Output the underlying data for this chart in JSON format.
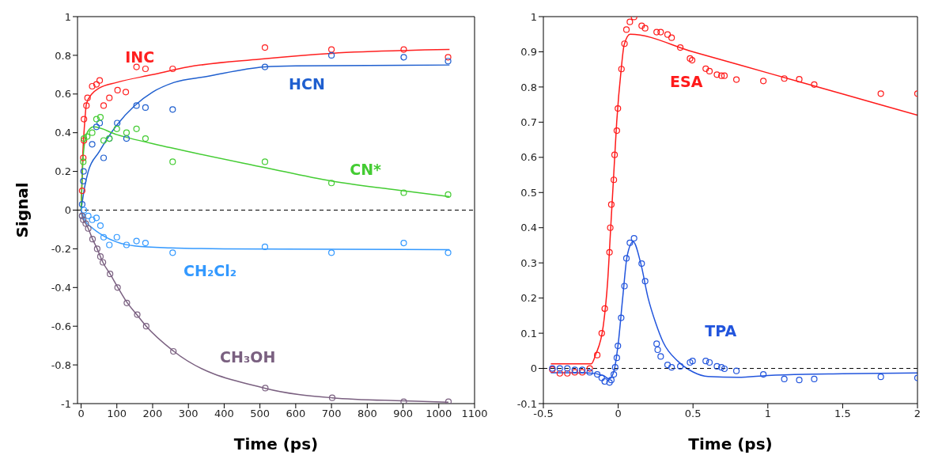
{
  "chart_data": [
    {
      "type": "line",
      "xlabel": "Time (ps)",
      "ylabel": "Signal",
      "xlim": [
        -10,
        1100
      ],
      "xticks": [
        0,
        100,
        200,
        300,
        400,
        500,
        600,
        700,
        800,
        900,
        1000,
        1100
      ],
      "ylim": [
        -1,
        1
      ],
      "yticks": [
        -1,
        -0.8,
        -0.6,
        -0.4,
        -0.2,
        0,
        0.2,
        0.4,
        0.6,
        0.8,
        1
      ],
      "ref_lines": [
        {
          "axis": "y",
          "value": 0,
          "color": "#000000",
          "line_style": "dashed"
        }
      ],
      "series": [
        {
          "marker": "none",
          "name": "INC",
          "color": "#ff2020",
          "x": [
            0,
            5,
            10,
            15,
            30,
            50,
            100,
            200,
            300,
            500,
            700,
            1030
          ],
          "values": [
            0,
            0.3,
            0.45,
            0.55,
            0.6,
            0.63,
            0.66,
            0.7,
            0.74,
            0.78,
            0.81,
            0.83
          ]
        },
        {
          "marker": "none",
          "name": "HCN",
          "color": "#1f5fcf",
          "x": [
            0,
            10,
            20,
            50,
            100,
            150,
            200,
            260,
            350,
            514,
            600,
            1030
          ],
          "values": [
            0,
            0.12,
            0.2,
            0.3,
            0.44,
            0.54,
            0.61,
            0.66,
            0.69,
            0.74,
            0.745,
            0.75
          ]
        },
        {
          "marker": "none",
          "name": "CN*",
          "color": "#44cc33",
          "x": [
            0,
            5,
            10,
            20,
            35,
            100,
            257,
            514,
            700,
            900,
            1030
          ],
          "values": [
            0,
            0.25,
            0.35,
            0.41,
            0.43,
            0.39,
            0.32,
            0.22,
            0.15,
            0.1,
            0.07
          ]
        },
        {
          "marker": "none",
          "name": "CH₂Cl₂",
          "color": "#3399ff",
          "x": [
            0,
            10,
            30,
            60,
            100,
            150,
            250,
            400,
            1030
          ],
          "values": [
            0,
            -0.05,
            -0.09,
            -0.13,
            -0.165,
            -0.185,
            -0.195,
            -0.2,
            -0.205
          ]
        },
        {
          "marker": "none",
          "name": "CH₃OH",
          "color": "#7a6080",
          "x": [
            0,
            3,
            6,
            13,
            20,
            32,
            45,
            54,
            61,
            81,
            102,
            128,
            157,
            182,
            258,
            515,
            702,
            902,
            1027
          ],
          "values": [
            0,
            -0.03,
            -0.05,
            -0.07,
            -0.095,
            -0.15,
            -0.2,
            -0.24,
            -0.27,
            -0.33,
            -0.397,
            -0.476,
            -0.543,
            -0.6,
            -0.728,
            -0.921,
            -0.97,
            -0.986,
            -0.993
          ]
        },
        {
          "type": "scatter",
          "marker": "circle",
          "color": "#ff2020",
          "x": [
            3,
            6,
            8,
            8,
            15,
            18,
            31,
            43,
            52,
            63,
            79,
            102,
            125,
            155,
            180,
            256,
            514,
            700,
            902,
            1026
          ],
          "values": [
            0.1,
            0.27,
            0.36,
            0.47,
            0.54,
            0.58,
            0.64,
            0.65,
            0.67,
            0.54,
            0.58,
            0.62,
            0.61,
            0.74,
            0.73,
            0.73,
            0.84,
            0.83,
            0.83,
            0.79
          ]
        },
        {
          "type": "scatter",
          "marker": "circle",
          "color": "#1f5fcf",
          "x": [
            3,
            6,
            7,
            31,
            43,
            52,
            63,
            79,
            101,
            127,
            155,
            180,
            256,
            514,
            700,
            902,
            1026
          ],
          "values": [
            0.03,
            0.15,
            0.2,
            0.34,
            0.43,
            0.45,
            0.27,
            0.37,
            0.45,
            0.37,
            0.54,
            0.53,
            0.52,
            0.74,
            0.8,
            0.79,
            0.77
          ]
        },
        {
          "type": "scatter",
          "marker": "circle",
          "color": "#44cc33",
          "x": [
            6,
            8,
            17,
            31,
            43,
            54,
            63,
            79,
            100,
            127,
            155,
            180,
            256,
            514,
            700,
            902,
            1026
          ],
          "values": [
            0.25,
            0.37,
            0.38,
            0.4,
            0.47,
            0.48,
            0.36,
            0.37,
            0.42,
            0.4,
            0.42,
            0.37,
            0.25,
            0.25,
            0.14,
            0.09,
            0.08
          ]
        },
        {
          "type": "scatter",
          "marker": "circle",
          "color": "#3399ff",
          "x": [
            3,
            8,
            20,
            31,
            43,
            54,
            63,
            79,
            100,
            127,
            155,
            180,
            256,
            514,
            700,
            902,
            1026
          ],
          "values": [
            -0.03,
            0,
            -0.03,
            -0.05,
            -0.04,
            -0.08,
            -0.14,
            -0.18,
            -0.14,
            -0.18,
            -0.16,
            -0.17,
            -0.22,
            -0.19,
            -0.22,
            -0.17,
            -0.22
          ]
        },
        {
          "type": "scatter",
          "marker": "circle",
          "color": "#7a6080",
          "x": [
            3,
            6,
            13,
            20,
            32,
            45,
            54,
            61,
            81,
            102,
            128,
            157,
            182,
            258,
            515,
            702,
            902,
            1027
          ],
          "values": [
            -0.03,
            -0.05,
            -0.07,
            -0.095,
            -0.15,
            -0.2,
            -0.24,
            -0.27,
            -0.33,
            -0.4,
            -0.48,
            -0.54,
            -0.6,
            -0.73,
            -0.92,
            -0.97,
            -0.99,
            -0.99
          ]
        }
      ]
    },
    {
      "type": "line",
      "xlabel": "Time (ps)",
      "xlim": [
        -0.5,
        2
      ],
      "xticks": [
        -0.5,
        0,
        0.5,
        1,
        1.5,
        2
      ],
      "ylim": [
        -0.1,
        1
      ],
      "yticks": [
        -0.1,
        0,
        0.1,
        0.2,
        0.3,
        0.4,
        0.5,
        0.6,
        0.7,
        0.8,
        0.9,
        1
      ],
      "ref_lines": [
        {
          "axis": "y",
          "value": 0,
          "color": "#000000",
          "line_style": "dashed"
        }
      ],
      "series": [
        {
          "marker": "none",
          "name": "ESA",
          "color": "#ff1a1a",
          "x": [
            -0.45,
            -0.18,
            -0.15,
            -0.1,
            -0.07,
            -0.05,
            -0.03,
            -0.01,
            0.02,
            0.04,
            0.08,
            0.5,
            1,
            1.5,
            2
          ],
          "values": [
            0.013,
            0.013,
            0.04,
            0.12,
            0.25,
            0.4,
            0.55,
            0.7,
            0.85,
            0.92,
            0.95,
            0.9,
            0.84,
            0.78,
            0.72
          ]
        },
        {
          "marker": "none",
          "name": "TPA",
          "color": "#2255dd",
          "x": [
            -0.45,
            -0.2,
            -0.1,
            -0.06,
            -0.03,
            0,
            0.03,
            0.06,
            0.1,
            0.15,
            0.2,
            0.25,
            0.3,
            0.4,
            0.5,
            0.6,
            0.8,
            1,
            1.5,
            2
          ],
          "values": [
            -0.012,
            -0.013,
            -0.02,
            -0.03,
            -0.01,
            0.07,
            0.2,
            0.32,
            0.36,
            0.3,
            0.2,
            0.13,
            0.075,
            0.02,
            -0.01,
            -0.023,
            -0.025,
            -0.02,
            -0.015,
            -0.013
          ]
        },
        {
          "type": "scatter",
          "marker": "circle",
          "color": "#ff1a1a",
          "x": [
            -0.44,
            -0.39,
            -0.34,
            -0.29,
            -0.24,
            -0.19,
            -0.14,
            -0.11,
            -0.09,
            -0.058,
            -0.053,
            -0.046,
            -0.029,
            -0.024,
            -0.009,
            -0.002,
            0.022,
            0.042,
            0.055,
            0.078,
            0.106,
            0.157,
            0.18,
            0.257,
            0.284,
            0.33,
            0.357,
            0.415,
            0.48,
            0.494,
            0.585,
            0.61,
            0.66,
            0.69,
            0.71,
            0.79,
            0.97,
            1.11,
            1.21,
            1.31,
            1.755,
            2
          ],
          "values": [
            -0.003,
            -0.014,
            -0.014,
            -0.011,
            -0.011,
            0,
            0.038,
            0.1,
            0.17,
            0.33,
            0.4,
            0.466,
            0.536,
            0.607,
            0.676,
            0.739,
            0.851,
            0.923,
            0.963,
            0.985,
            0.999,
            0.974,
            0.967,
            0.956,
            0.956,
            0.949,
            0.94,
            0.912,
            0.881,
            0.876,
            0.852,
            0.845,
            0.835,
            0.832,
            0.832,
            0.821,
            0.817,
            0.824,
            0.822,
            0.807,
            0.781,
            0.781
          ]
        },
        {
          "type": "scatter",
          "marker": "circle",
          "color": "#2255dd",
          "x": [
            -0.44,
            -0.39,
            -0.34,
            -0.29,
            -0.24,
            -0.19,
            -0.14,
            -0.11,
            -0.09,
            -0.058,
            -0.046,
            -0.029,
            -0.02,
            -0.009,
            -0.002,
            0.02,
            0.042,
            0.055,
            0.078,
            0.106,
            0.157,
            0.18,
            0.257,
            0.264,
            0.284,
            0.33,
            0.357,
            0.415,
            0.48,
            0.497,
            0.585,
            0.61,
            0.66,
            0.69,
            0.71,
            0.79,
            0.97,
            1.11,
            1.21,
            1.31,
            1.755,
            2
          ],
          "values": [
            0,
            0,
            0,
            -0.004,
            -0.004,
            -0.011,
            -0.017,
            -0.027,
            -0.037,
            -0.04,
            -0.033,
            -0.017,
            0.003,
            0.03,
            0.064,
            0.144,
            0.234,
            0.313,
            0.357,
            0.37,
            0.298,
            0.248,
            0.07,
            0.053,
            0.034,
            0.01,
            0.003,
            0.006,
            0.017,
            0.021,
            0.021,
            0.017,
            0.006,
            0.003,
            -0.001,
            -0.007,
            -0.017,
            -0.03,
            -0.033,
            -0.03,
            -0.024,
            -0.027
          ]
        }
      ]
    }
  ]
}
